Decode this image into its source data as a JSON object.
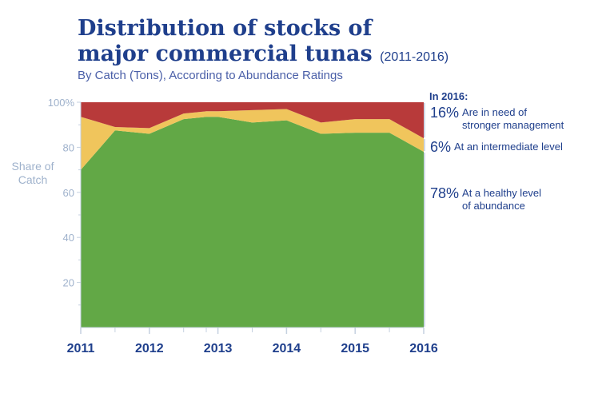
{
  "title_line1": "Distribution of stocks of",
  "title_line2": "major commercial tunas",
  "title_years": "(2011-2016)",
  "subtitle": "By Catch (Tons), According to Abundance Ratings",
  "ylabel_line1": "Share of",
  "ylabel_line2": "Catch",
  "side_heading": "In 2016:",
  "annotations": [
    {
      "pct": "16%",
      "text_line1": "Are in need of",
      "text_line2": "stronger management",
      "color": "#b83a3a"
    },
    {
      "pct": "6%",
      "text_line1": "At an intermediate level",
      "text_line2": "",
      "color": "#f0c55c"
    },
    {
      "pct": "78%",
      "text_line1": "At a healthy level",
      "text_line2": "of abundance",
      "color": "#62a846"
    }
  ],
  "chart_data": {
    "type": "area",
    "stacked": true,
    "x": [
      2011,
      2011.5,
      2012,
      2012.5,
      2012.83,
      2013,
      2013.5,
      2014,
      2014.5,
      2015,
      2015.5,
      2016
    ],
    "x_tick_labels": [
      "2011",
      "2012",
      "2013",
      "2014",
      "2015",
      "2016"
    ],
    "x_tick_values": [
      2011,
      2012,
      2013,
      2014,
      2015,
      2016
    ],
    "x_minor_ticks": [
      2011.5,
      2012.5,
      2012.83,
      2013.5,
      2014.5,
      2015.5
    ],
    "y_tick_labels": [
      "20",
      "40",
      "60",
      "80",
      "100%"
    ],
    "y_tick_values": [
      20,
      40,
      60,
      80,
      100
    ],
    "ylim": [
      0,
      100
    ],
    "series": [
      {
        "key": "healthy",
        "color": "#62a846",
        "values": [
          70,
          87.5,
          86,
          92.5,
          93.5,
          93.5,
          91,
          92,
          86,
          86.5,
          86.5,
          78
        ]
      },
      {
        "key": "intermediate",
        "color": "#f0c55c",
        "values": [
          23.5,
          1.5,
          2.5,
          2.5,
          2.5,
          2.5,
          5.5,
          5,
          5,
          6,
          6,
          6
        ]
      },
      {
        "key": "need_management",
        "color": "#b83a3a",
        "values": [
          6.5,
          11,
          11.5,
          5,
          4,
          4,
          3.5,
          3,
          9,
          7.5,
          7.5,
          16
        ]
      }
    ]
  }
}
